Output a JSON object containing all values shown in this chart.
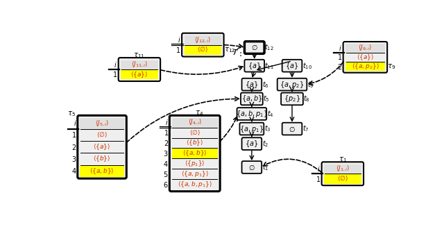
{
  "bg": "#ffffff",
  "yellow": "#ffff00",
  "lgray": "#e8e8e8",
  "mgray": "#c8c8c8",
  "orange": "#cc3300",
  "black": "#000000",
  "node_bg": "#efefef",
  "table_bg": "#efefef"
}
